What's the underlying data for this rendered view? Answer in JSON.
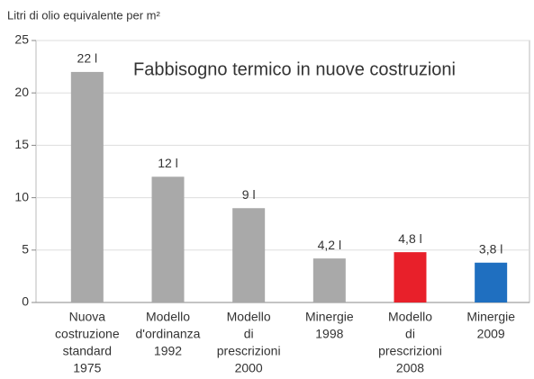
{
  "chart_data": {
    "type": "bar",
    "title": "Fabbisogno termico in nuove costruzioni",
    "y_label": "Litri di olio equivalente per m²",
    "categories": [
      [
        "Nuova",
        "costruzione",
        "standard",
        "1975"
      ],
      [
        "Modello",
        "d'ordinanza",
        "1992"
      ],
      [
        "Modello",
        "di",
        "prescrizioni",
        "2000"
      ],
      [
        "Minergie",
        "1998"
      ],
      [
        "Modello",
        "di",
        "prescrizioni",
        "2008"
      ],
      [
        "Minergie",
        "2009"
      ]
    ],
    "values": [
      22,
      12,
      9,
      4.2,
      4.8,
      3.8
    ],
    "value_labels": [
      "22 l",
      "12 l",
      "9 l",
      "4,2 l",
      "4,8 l",
      "3,8 l"
    ],
    "colors": [
      "#a9a9a9",
      "#a9a9a9",
      "#a9a9a9",
      "#a9a9a9",
      "#e8202a",
      "#1f6fc0"
    ],
    "ylim": [
      0,
      25
    ],
    "yticks": [
      0,
      5,
      10,
      15,
      20,
      25
    ],
    "grid": true
  }
}
